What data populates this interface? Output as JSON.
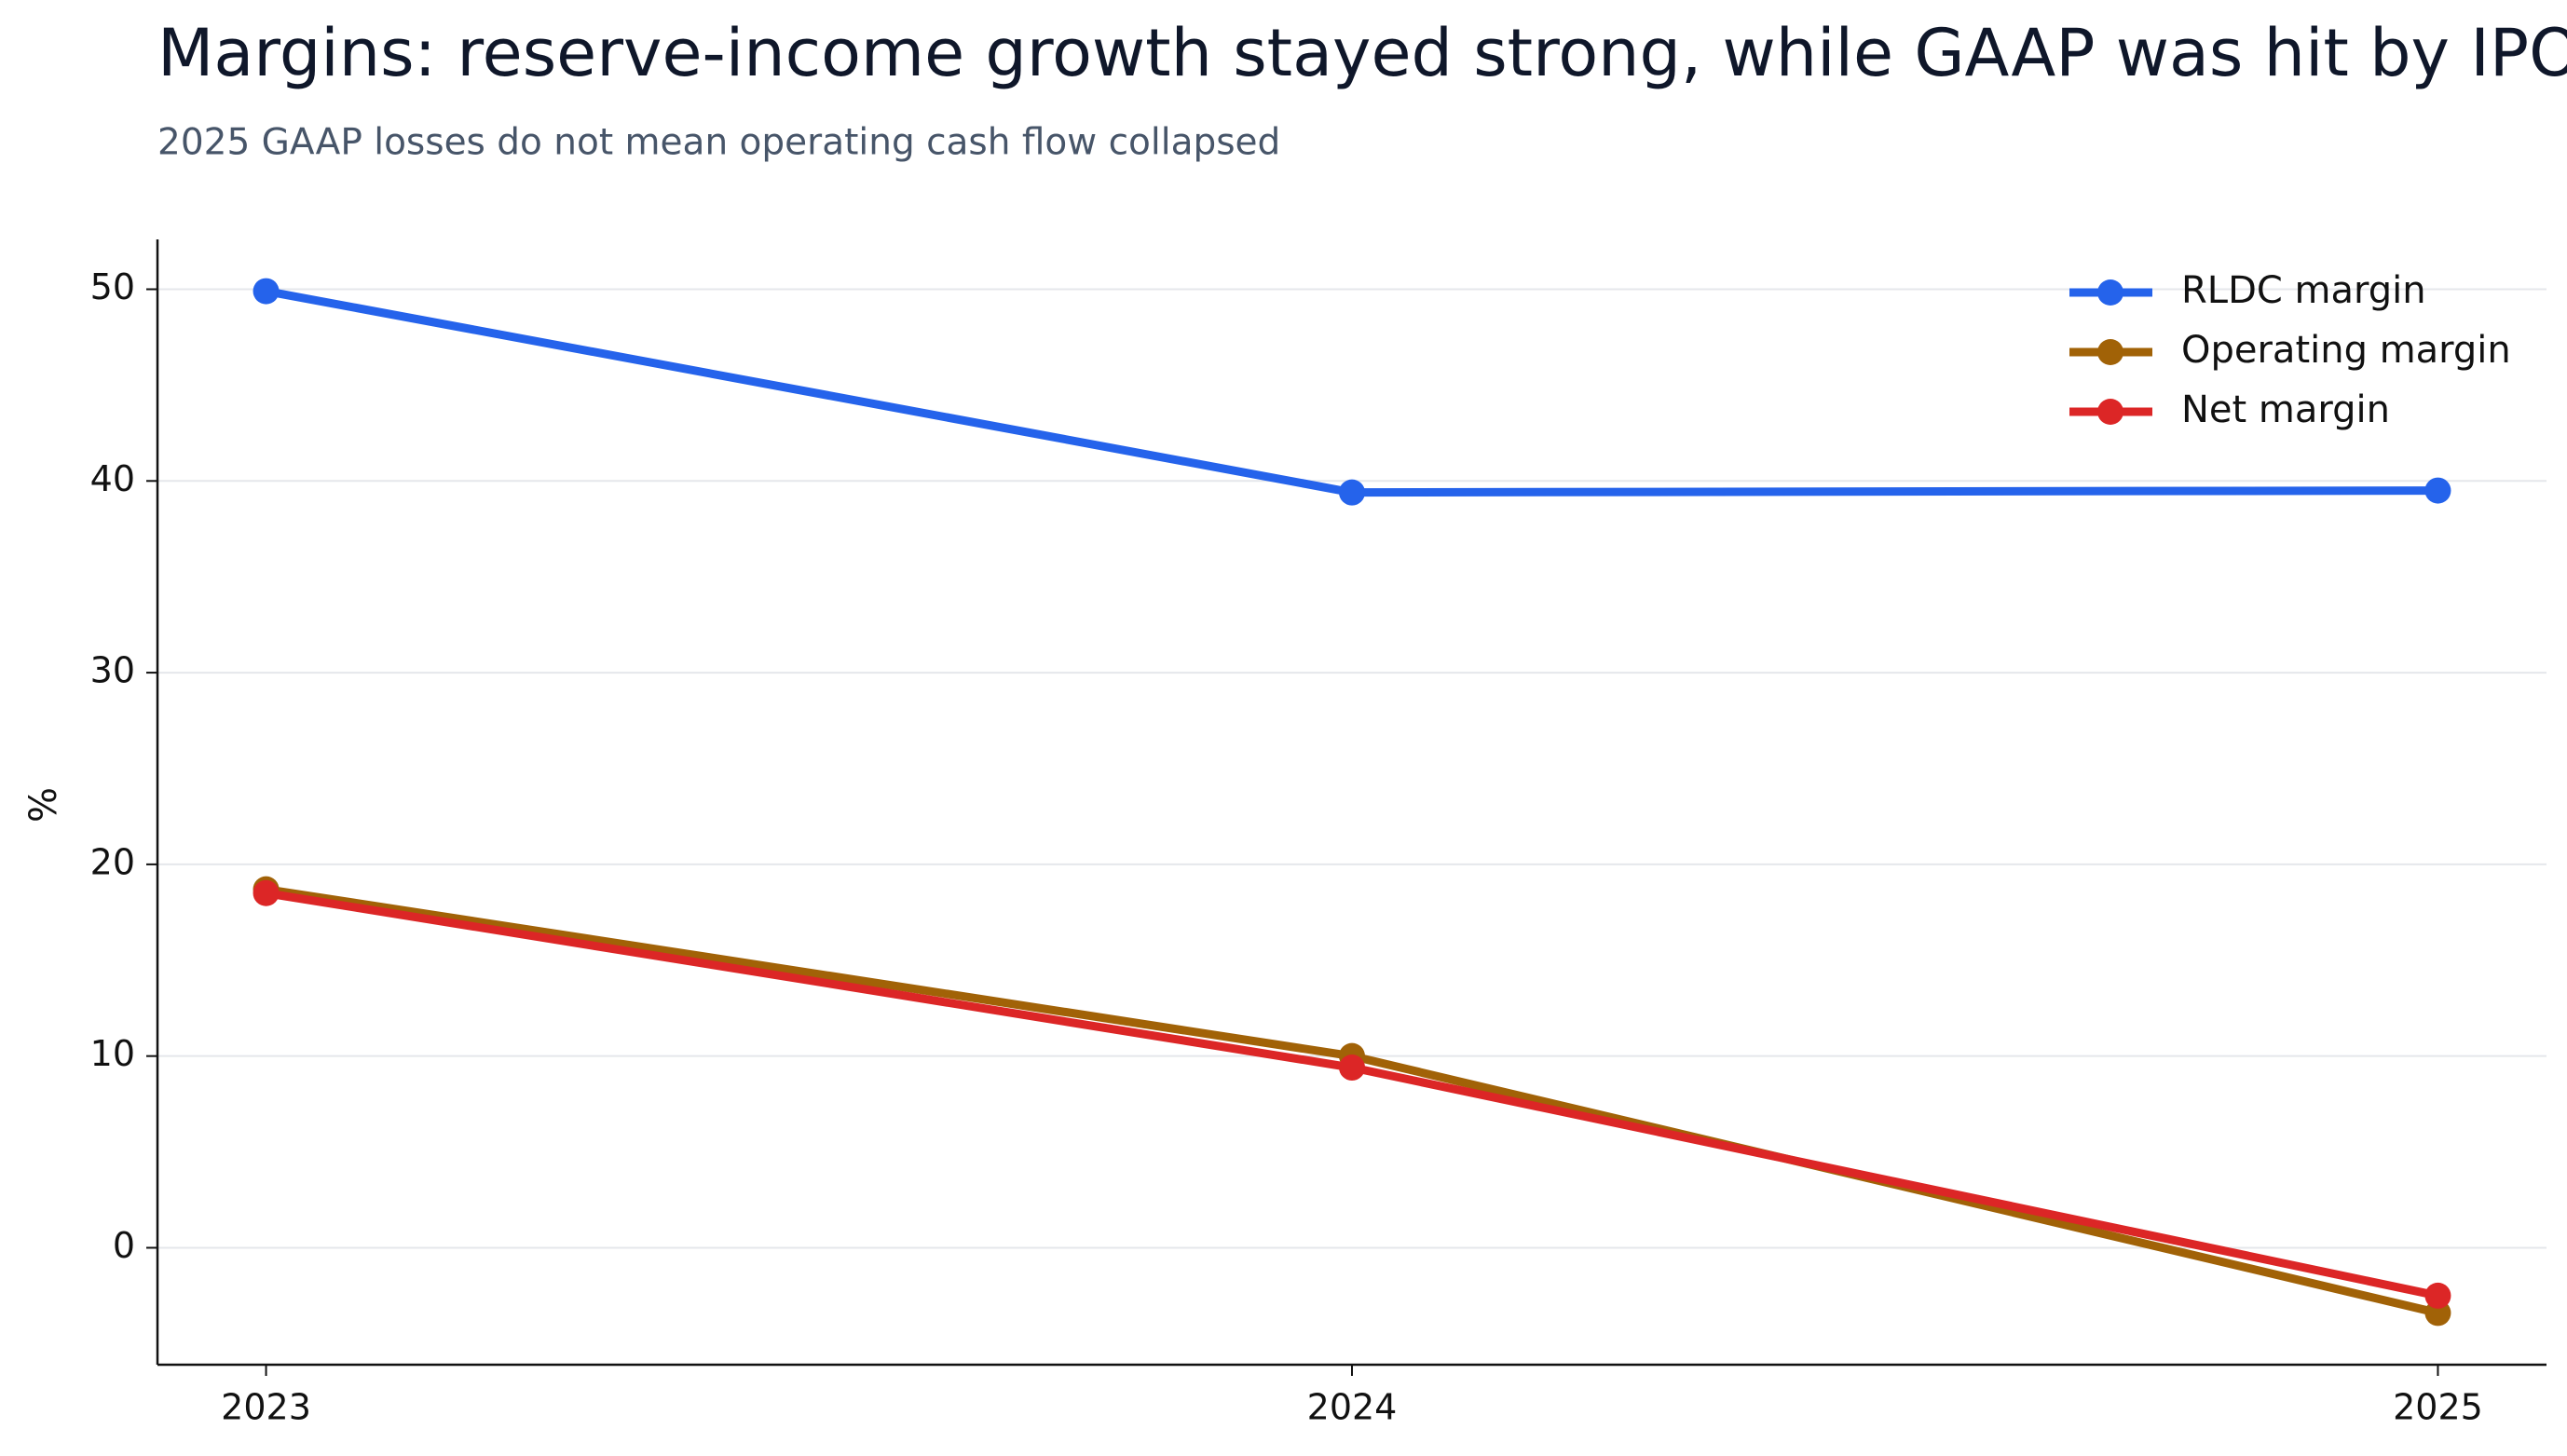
{
  "chart_data": {
    "type": "line",
    "title": "Margins: reserve-income growth stayed strong, while GAAP was hit by IPO SBC",
    "subtitle": "2025 GAAP losses do not mean operating cash flow collapsed",
    "y_label": "%",
    "x": [
      2023,
      2024,
      2025
    ],
    "xlim": [
      2022.9,
      2025.1
    ],
    "xticks": [
      2023,
      2024,
      2025
    ],
    "ylim": [
      -6.1,
      52.6
    ],
    "yticks": [
      0,
      10,
      20,
      30,
      40,
      50
    ],
    "grid": true,
    "legend": "upper right",
    "series": [
      {
        "name": "RLDC margin",
        "color": "#2563eb",
        "values": [
          49.9,
          39.4,
          39.5
        ]
      },
      {
        "name": "Operating margin",
        "color": "#a16207",
        "values": [
          18.7,
          10.0,
          -3.4
        ]
      },
      {
        "name": "Net margin",
        "color": "#dc2626",
        "values": [
          18.5,
          9.4,
          -2.5
        ]
      }
    ]
  }
}
